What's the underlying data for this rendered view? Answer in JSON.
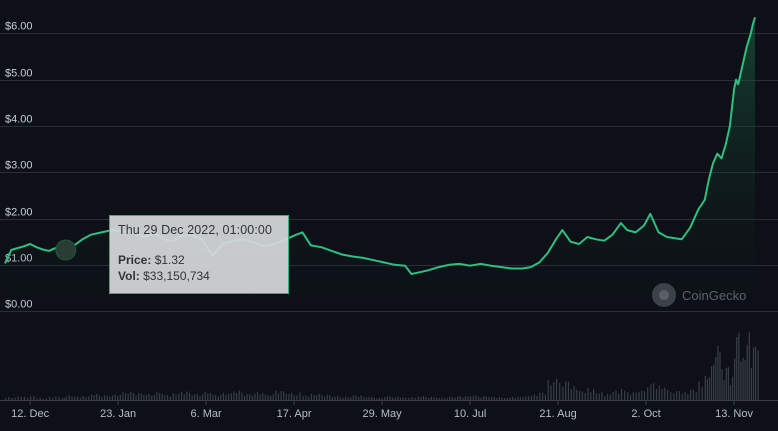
{
  "chart_data": {
    "type": "line",
    "y_tick_labels": [
      "$0.00",
      "$1.00",
      "$2.00",
      "$3.00",
      "$4.00",
      "$5.00",
      "$6.00"
    ],
    "y_ticks": [
      0,
      1,
      2,
      3,
      4,
      5,
      6
    ],
    "ylim": [
      -0.15,
      6.55
    ],
    "x_tick_labels": [
      "12. Dec",
      "23. Jan",
      "6. Mar",
      "17. Apr",
      "29. May",
      "10. Jul",
      "21. Aug",
      "2. Oct",
      "13. Nov"
    ],
    "x_ticks": [
      "2022-12-12",
      "2023-01-23",
      "2023-03-06",
      "2023-04-17",
      "2023-05-29",
      "2023-07-10",
      "2023-08-21",
      "2023-10-02",
      "2023-11-13"
    ],
    "xlim": [
      "2022-11-30",
      "2023-11-23"
    ],
    "grid": true,
    "colors": {
      "line": "#2fbf7f",
      "area_top": "#1c4a34",
      "volume": "#3a3f46",
      "background": "#0d1117"
    },
    "series": [
      {
        "x": [
          "2022-11-30",
          "2022-12-03",
          "2022-12-06",
          "2022-12-09",
          "2022-12-12",
          "2022-12-15",
          "2022-12-18",
          "2022-12-21",
          "2022-12-24",
          "2022-12-27",
          "2022-12-29",
          "2023-01-02",
          "2023-01-06",
          "2023-01-10",
          "2023-01-15",
          "2023-01-20",
          "2023-01-25",
          "2023-01-30",
          "2023-02-04",
          "2023-02-09",
          "2023-02-14",
          "2023-02-18",
          "2023-02-22",
          "2023-02-27",
          "2023-03-04",
          "2023-03-09",
          "2023-03-14",
          "2023-03-19",
          "2023-03-24",
          "2023-03-29",
          "2023-04-03",
          "2023-04-08",
          "2023-04-13",
          "2023-04-18",
          "2023-04-21",
          "2023-04-25",
          "2023-04-30",
          "2023-05-05",
          "2023-05-10",
          "2023-05-15",
          "2023-05-20",
          "2023-05-25",
          "2023-05-30",
          "2023-06-04",
          "2023-06-09",
          "2023-06-12",
          "2023-06-15",
          "2023-06-20",
          "2023-06-25",
          "2023-06-30",
          "2023-07-05",
          "2023-07-10",
          "2023-07-15",
          "2023-07-20",
          "2023-07-25",
          "2023-07-30",
          "2023-08-04",
          "2023-08-08",
          "2023-08-12",
          "2023-08-16",
          "2023-08-20",
          "2023-08-23",
          "2023-08-27",
          "2023-08-31",
          "2023-09-04",
          "2023-09-08",
          "2023-09-12",
          "2023-09-16",
          "2023-09-20",
          "2023-09-23",
          "2023-09-27",
          "2023-10-01",
          "2023-10-04",
          "2023-10-08",
          "2023-10-12",
          "2023-10-15",
          "2023-10-19",
          "2023-10-23",
          "2023-10-27",
          "2023-10-30",
          "2023-11-01",
          "2023-11-03",
          "2023-11-05",
          "2023-11-07",
          "2023-11-09",
          "2023-11-11",
          "2023-11-13",
          "2023-11-14",
          "2023-11-15",
          "2023-11-16",
          "2023-11-17",
          "2023-11-18",
          "2023-11-19",
          "2023-11-20",
          "2023-11-21",
          "2023-11-22",
          "2023-11-23"
        ],
        "y": [
          1.03,
          1.32,
          1.36,
          1.4,
          1.45,
          1.38,
          1.33,
          1.3,
          1.36,
          1.28,
          1.32,
          1.42,
          1.55,
          1.65,
          1.7,
          1.75,
          1.72,
          1.72,
          1.6,
          1.68,
          1.55,
          1.5,
          1.62,
          1.65,
          1.55,
          1.2,
          1.45,
          1.52,
          1.55,
          1.48,
          1.4,
          1.45,
          1.55,
          1.65,
          1.7,
          1.42,
          1.38,
          1.3,
          1.22,
          1.18,
          1.15,
          1.1,
          1.05,
          1.0,
          0.98,
          0.8,
          0.83,
          0.88,
          0.95,
          1.0,
          1.02,
          0.98,
          1.02,
          0.98,
          0.95,
          0.92,
          0.92,
          0.95,
          1.05,
          1.25,
          1.55,
          1.75,
          1.5,
          1.45,
          1.6,
          1.55,
          1.52,
          1.65,
          1.9,
          1.75,
          1.7,
          1.85,
          2.1,
          1.7,
          1.6,
          1.58,
          1.55,
          1.8,
          2.2,
          2.4,
          2.85,
          3.2,
          3.4,
          3.3,
          3.6,
          4.0,
          4.8,
          5.0,
          4.9,
          5.1,
          5.3,
          5.5,
          5.7,
          5.85,
          6.0,
          6.2,
          6.35
        ]
      }
    ],
    "volume": [
      0.04,
      0.03,
      0.05,
      0.04,
      0.06,
      0.03,
      0.02,
      0.04,
      0.05,
      0.03,
      0.06,
      0.04,
      0.05,
      0.08,
      0.06,
      0.07,
      0.1,
      0.09,
      0.08,
      0.1,
      0.07,
      0.09,
      0.11,
      0.08,
      0.1,
      0.07,
      0.09,
      0.12,
      0.08,
      0.1,
      0.07,
      0.12,
      0.09,
      0.1,
      0.06,
      0.08,
      0.07,
      0.05,
      0.04,
      0.06,
      0.04,
      0.03,
      0.05,
      0.04,
      0.03,
      0.04,
      0.05,
      0.04,
      0.03,
      0.04,
      0.05,
      0.06,
      0.05,
      0.04,
      0.03,
      0.04,
      0.05,
      0.07,
      0.1,
      0.25,
      0.3,
      0.25,
      0.18,
      0.12,
      0.15,
      0.1,
      0.08,
      0.12,
      0.14,
      0.1,
      0.12,
      0.16,
      0.22,
      0.18,
      0.14,
      0.12,
      0.1,
      0.14,
      0.24,
      0.35,
      0.45,
      0.55,
      0.7,
      0.4,
      0.5,
      0.3,
      0.6,
      0.8,
      0.9,
      0.65,
      0.75,
      0.55,
      0.7,
      0.95,
      0.6,
      0.85,
      0.7
    ],
    "tooltip": {
      "date": "Thu 29 Dec 2022, 01:00:00",
      "x": "2022-12-29",
      "price_label": "Price:",
      "price_value": "$1.32",
      "vol_label": "Vol:",
      "vol_value": "$33,150,734"
    },
    "watermark": "CoinGecko"
  }
}
